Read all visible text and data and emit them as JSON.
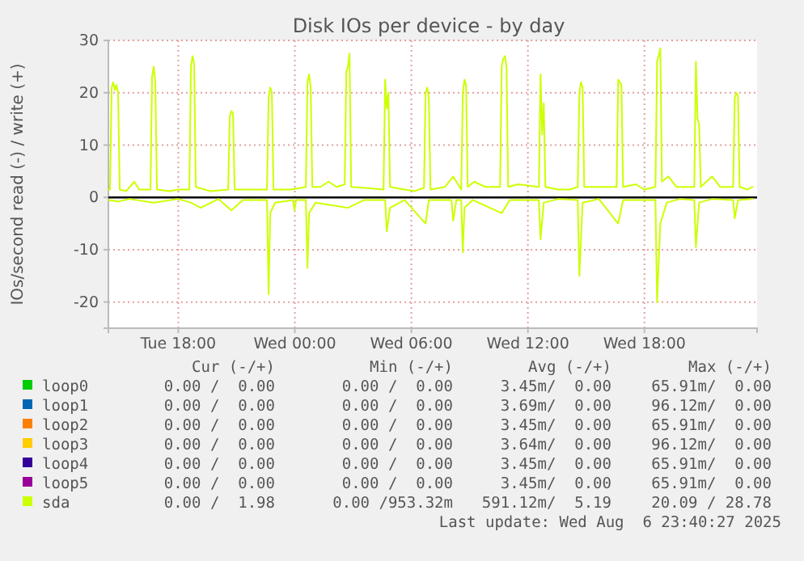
{
  "chart_data": {
    "type": "line",
    "title": "Disk IOs per device - by day",
    "ylabel": "IOs/second read (-) / write (+)",
    "xlim": [
      "2025-08-05T14:24",
      "2025-08-06T23:48"
    ],
    "xticks": [
      {
        "value": "2025-08-05T18:00",
        "label": "Tue 18:00"
      },
      {
        "value": "2025-08-06T00:00",
        "label": "Wed 00:00"
      },
      {
        "value": "2025-08-06T06:00",
        "label": "Wed 06:00"
      },
      {
        "value": "2025-08-06T12:00",
        "label": "Wed 12:00"
      },
      {
        "value": "2025-08-06T18:00",
        "label": "Wed 18:00"
      }
    ],
    "ylim": [
      -25,
      30
    ],
    "yticks": [
      -20,
      -10,
      0,
      10,
      20,
      30
    ],
    "grid": true,
    "legend": "bottom",
    "ref_lines": [
      {
        "axis": "y",
        "value": 0,
        "color": "#000000"
      }
    ],
    "series": [
      {
        "name": "loop0",
        "color": "#00cc00"
      },
      {
        "name": "loop1",
        "color": "#0066b3"
      },
      {
        "name": "loop2",
        "color": "#ff8000"
      },
      {
        "name": "loop3",
        "color": "#ffcc00"
      },
      {
        "name": "loop4",
        "color": "#330099"
      },
      {
        "name": "loop5",
        "color": "#990099"
      },
      {
        "name": "sda",
        "color": "#ccff00",
        "x": [
          "2025-08-05T14:24",
          "2025-08-05T14:29",
          "2025-08-05T14:34",
          "2025-08-05T14:39",
          "2025-08-05T14:44",
          "2025-08-05T14:49",
          "2025-08-05T14:54",
          "2025-08-05T14:59",
          "2025-08-05T15:19",
          "2025-08-05T15:44",
          "2025-08-05T15:59",
          "2025-08-05T16:34",
          "2025-08-05T16:39",
          "2025-08-05T16:44",
          "2025-08-05T16:49",
          "2025-08-05T16:54",
          "2025-08-05T17:34",
          "2025-08-05T17:59",
          "2025-08-05T18:34",
          "2025-08-05T18:39",
          "2025-08-05T18:44",
          "2025-08-05T18:49",
          "2025-08-05T18:54",
          "2025-08-05T19:39",
          "2025-08-05T20:34",
          "2025-08-05T20:39",
          "2025-08-05T20:44",
          "2025-08-05T20:49",
          "2025-08-05T20:54",
          "2025-08-05T21:44",
          "2025-08-05T22:34",
          "2025-08-05T22:39",
          "2025-08-05T22:44",
          "2025-08-05T22:49",
          "2025-08-05T22:54",
          "2025-08-05T23:49",
          "2025-08-06T00:34",
          "2025-08-06T00:39",
          "2025-08-06T00:44",
          "2025-08-06T00:49",
          "2025-08-06T00:54",
          "2025-08-06T01:19",
          "2025-08-06T01:44",
          "2025-08-06T02:09",
          "2025-08-06T02:34",
          "2025-08-06T02:39",
          "2025-08-06T02:44",
          "2025-08-06T02:49",
          "2025-08-06T02:54",
          "2025-08-06T03:39",
          "2025-08-06T04:34",
          "2025-08-06T04:39",
          "2025-08-06T04:44",
          "2025-08-06T04:49",
          "2025-08-06T04:54",
          "2025-08-06T05:39",
          "2025-08-06T06:09",
          "2025-08-06T06:39",
          "2025-08-06T06:44",
          "2025-08-06T06:49",
          "2025-08-06T06:54",
          "2025-08-06T06:59",
          "2025-08-06T07:44",
          "2025-08-06T08:09",
          "2025-08-06T08:34",
          "2025-08-06T08:39",
          "2025-08-06T08:44",
          "2025-08-06T08:49",
          "2025-08-06T08:54",
          "2025-08-06T09:14",
          "2025-08-06T09:49",
          "2025-08-06T10:34",
          "2025-08-06T10:39",
          "2025-08-06T10:44",
          "2025-08-06T10:49",
          "2025-08-06T10:54",
          "2025-08-06T10:59",
          "2025-08-06T11:29",
          "2025-08-06T12:34",
          "2025-08-06T12:39",
          "2025-08-06T12:44",
          "2025-08-06T12:49",
          "2025-08-06T12:54",
          "2025-08-06T13:34",
          "2025-08-06T14:09",
          "2025-08-06T14:34",
          "2025-08-06T14:39",
          "2025-08-06T14:44",
          "2025-08-06T14:49",
          "2025-08-06T14:54",
          "2025-08-06T15:39",
          "2025-08-06T16:34",
          "2025-08-06T16:39",
          "2025-08-06T16:44",
          "2025-08-06T16:49",
          "2025-08-06T16:54",
          "2025-08-06T17:34",
          "2025-08-06T17:59",
          "2025-08-06T18:34",
          "2025-08-06T18:39",
          "2025-08-06T18:44",
          "2025-08-06T18:49",
          "2025-08-06T18:54",
          "2025-08-06T19:14",
          "2025-08-06T19:39",
          "2025-08-06T20:34",
          "2025-08-06T20:39",
          "2025-08-06T20:44",
          "2025-08-06T20:49",
          "2025-08-06T20:54",
          "2025-08-06T21:29",
          "2025-08-06T21:54",
          "2025-08-06T22:34",
          "2025-08-06T22:39",
          "2025-08-06T22:44",
          "2025-08-06T22:49",
          "2025-08-06T22:54",
          "2025-08-06T23:19",
          "2025-08-06T23:34"
        ],
        "values": [
          1.5,
          1.5,
          21,
          22,
          20.5,
          21.5,
          20,
          1.5,
          1.2,
          3,
          1.5,
          1.5,
          23,
          25,
          22,
          1.5,
          1.2,
          1.5,
          1.5,
          25,
          27,
          25.5,
          2,
          1.2,
          1.5,
          15.5,
          16.5,
          16,
          1.5,
          1.5,
          1.5,
          19,
          21,
          20,
          1.5,
          1.5,
          2,
          22,
          23.5,
          21,
          2,
          2,
          3,
          2,
          2.5,
          24,
          25,
          27.5,
          2,
          1.8,
          1.5,
          22.5,
          17,
          20,
          2,
          1.5,
          1.2,
          1.8,
          20,
          21,
          19,
          1.5,
          2,
          4,
          1.5,
          20,
          22.5,
          21.5,
          2,
          3,
          2,
          2,
          25,
          26.5,
          27,
          25,
          2,
          2.5,
          2,
          23.5,
          12,
          18,
          2,
          1.5,
          1.5,
          2,
          20,
          22,
          21,
          2,
          2,
          2,
          22.5,
          22,
          21.5,
          2,
          2.5,
          1.5,
          2,
          26,
          27,
          28.5,
          3,
          4,
          2,
          2,
          26,
          15,
          14,
          2,
          4,
          2,
          2,
          19,
          20,
          19.5,
          2,
          1.5,
          2
        ]
      },
      {
        "color": "#ccff00",
        "x": [
          "2025-08-05T14:24",
          "2025-08-05T14:54",
          "2025-08-05T15:29",
          "2025-08-05T16:44",
          "2025-08-05T17:59",
          "2025-08-05T18:39",
          "2025-08-05T19:09",
          "2025-08-05T20:04",
          "2025-08-05T20:44",
          "2025-08-05T21:19",
          "2025-08-05T22:34",
          "2025-08-05T22:39",
          "2025-08-05T22:44",
          "2025-08-05T22:59",
          "2025-08-05T23:54",
          "2025-08-05T23:59",
          "2025-08-06T00:04",
          "2025-08-06T00:34",
          "2025-08-06T00:39",
          "2025-08-06T00:44",
          "2025-08-06T01:04",
          "2025-08-06T02:44",
          "2025-08-06T03:34",
          "2025-08-06T04:39",
          "2025-08-06T04:44",
          "2025-08-06T04:54",
          "2025-08-06T05:39",
          "2025-08-06T06:44",
          "2025-08-06T06:54",
          "2025-08-06T08:04",
          "2025-08-06T08:09",
          "2025-08-06T08:19",
          "2025-08-06T08:34",
          "2025-08-06T08:39",
          "2025-08-06T08:44",
          "2025-08-06T09:09",
          "2025-08-06T10:39",
          "2025-08-06T11:04",
          "2025-08-06T12:34",
          "2025-08-06T12:39",
          "2025-08-06T12:49",
          "2025-08-06T13:34",
          "2025-08-06T14:34",
          "2025-08-06T14:39",
          "2025-08-06T14:49",
          "2025-08-06T15:39",
          "2025-08-06T16:39",
          "2025-08-06T16:54",
          "2025-08-06T18:34",
          "2025-08-06T18:39",
          "2025-08-06T18:49",
          "2025-08-06T19:09",
          "2025-08-06T19:49",
          "2025-08-06T20:34",
          "2025-08-06T20:39",
          "2025-08-06T20:49",
          "2025-08-06T21:29",
          "2025-08-06T22:34",
          "2025-08-06T22:39",
          "2025-08-06T22:49",
          "2025-08-06T23:34"
        ],
        "values": [
          -0.5,
          -0.8,
          -0.3,
          -1,
          -0.3,
          -1,
          -2,
          -0.3,
          -2.5,
          -0.5,
          -0.5,
          -18.5,
          -3,
          -1,
          -0.5,
          -2.5,
          -0.5,
          -0.5,
          -13.5,
          -3,
          -1,
          -2,
          -0.5,
          -0.5,
          -6.5,
          -2,
          -0.5,
          -5,
          -0.5,
          -0.5,
          -4.5,
          -0.5,
          -0.5,
          -10.5,
          -2,
          -0.5,
          -3,
          -0.5,
          -0.5,
          -8,
          -1,
          -0.3,
          -0.5,
          -15,
          -1,
          -0.3,
          -5,
          -0.5,
          -0.5,
          -20,
          -5,
          -1,
          -0.3,
          -0.5,
          -9.5,
          -1,
          -0.3,
          -0.5,
          -4,
          -0.5,
          -0.3
        ]
      }
    ],
    "annotations": [
      "Cur (-/+)",
      "Min (-/+)",
      "Avg (-/+)",
      "Max (-/+)",
      "0.00 /  0.00",
      "0.00 /  0.00",
      "3.45m/  0.00",
      "65.91m/  0.00",
      "0.00 /  0.00",
      "0.00 /  0.00",
      "3.69m/  0.00",
      "96.12m/  0.00",
      "0.00 /  0.00",
      "0.00 /  0.00",
      "3.45m/  0.00",
      "65.91m/  0.00",
      "0.00 /  0.00",
      "0.00 /  0.00",
      "3.64m/  0.00",
      "96.12m/  0.00",
      "0.00 /  0.00",
      "0.00 /  0.00",
      "3.45m/  0.00",
      "65.91m/  0.00",
      "0.00 /  0.00",
      "0.00 /  0.00",
      "3.45m/  0.00",
      "65.91m/  0.00",
      "0.00 /  1.98",
      "0.00 /953.32m",
      "591.12m/  5.19",
      "20.09 / 28.78",
      "Last update: Wed Aug  6 23:40:27 2025"
    ]
  }
}
